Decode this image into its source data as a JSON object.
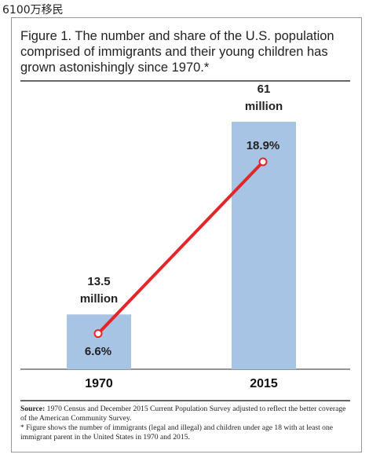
{
  "caption": "6100万移民",
  "chart_data": {
    "type": "bar",
    "title": "Figure 1. The number and share of the U.S. population comprised of immigrants and their young children has grown astonishingly since 1970.*",
    "categories": [
      "1970",
      "2015"
    ],
    "series": [
      {
        "color": "#a7c4e5",
        "values": [
          13.5,
          61
        ],
        "value_labels": [
          "13.5 million",
          "61 million"
        ]
      },
      {
        "type": "line",
        "color": "#e3262a",
        "values": [
          6.6,
          18.9
        ],
        "value_labels": [
          "6.6%",
          "18.9%"
        ]
      }
    ],
    "source_label": "Source:",
    "source": "1970 Census and December 2015 Current Population Survey adjusted to reflect the better coverage of the American Community Survey.",
    "footnote": "* Figure shows the number of immigrants (legal and illegal) and children under age 18 with at least one immigrant parent in the United States in 1970 and 2015."
  }
}
